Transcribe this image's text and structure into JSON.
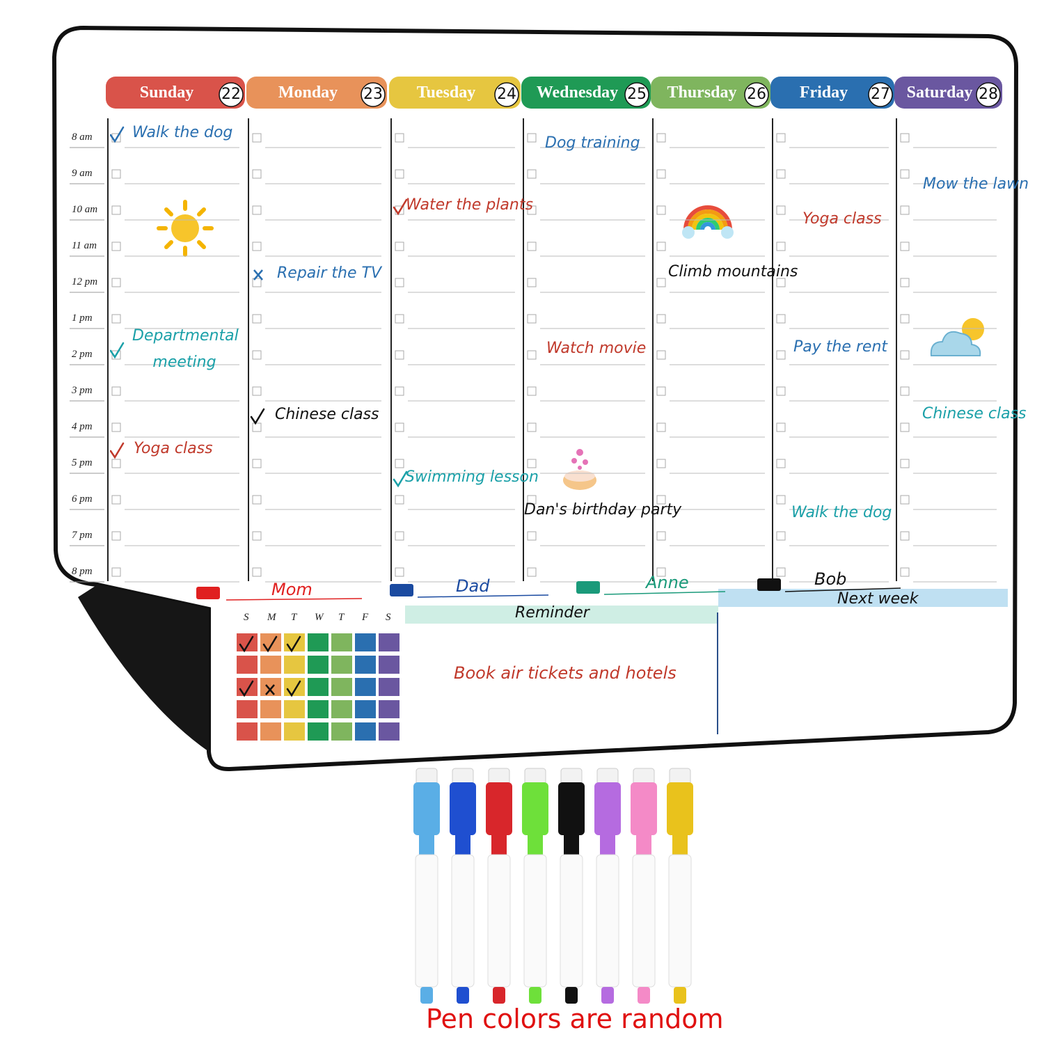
{
  "days": [
    {
      "name": "Sunday",
      "date": "22",
      "color": "#d9534a",
      "entries": [
        {
          "text": "Walk the dog",
          "color": "#2a6fb0"
        },
        {
          "text": "Departmental meeting",
          "color": "#1aa0a8"
        },
        {
          "text": "Yoga class",
          "color": "#c0392b"
        }
      ]
    },
    {
      "name": "Monday",
      "date": "23",
      "color": "#e8925a",
      "entries": [
        {
          "text": "Repair the TV",
          "color": "#2a6fb0"
        },
        {
          "text": "Chinese class",
          "color": "#111111"
        }
      ]
    },
    {
      "name": "Tuesday",
      "date": "24",
      "color": "#e6c640",
      "entries": [
        {
          "text": "Water the plants",
          "color": "#c0392b"
        },
        {
          "text": "Swimming lesson",
          "color": "#1aa0a8"
        }
      ]
    },
    {
      "name": "Wednesday",
      "date": "25",
      "color": "#1f9a55",
      "entries": [
        {
          "text": "Dog training",
          "color": "#2a6fb0"
        },
        {
          "text": "Watch movie",
          "color": "#c0392b"
        },
        {
          "text": "Dan's birthday party",
          "color": "#111111"
        }
      ]
    },
    {
      "name": "Thursday",
      "date": "26",
      "color": "#7fb55e",
      "entries": [
        {
          "text": "Climb mountains",
          "color": "#111111"
        }
      ]
    },
    {
      "name": "Friday",
      "date": "27",
      "color": "#2a6fb0",
      "entries": [
        {
          "text": "Yoga class",
          "color": "#c0392b"
        },
        {
          "text": "Pay the rent",
          "color": "#2a6fb0"
        },
        {
          "text": "Walk the dog",
          "color": "#1aa0a8"
        }
      ]
    },
    {
      "name": "Saturday",
      "date": "28",
      "color": "#6a57a0",
      "entries": [
        {
          "text": "Mow the lawn",
          "color": "#2a6fb0"
        },
        {
          "text": "Chinese class",
          "color": "#1aa0a8"
        }
      ]
    }
  ],
  "times": [
    "8 am",
    "9 am",
    "10 am",
    "11 am",
    "12 pm",
    "1 pm",
    "2 pm",
    "3 pm",
    "4 pm",
    "5 pm",
    "6 pm",
    "7 pm",
    "8 pm"
  ],
  "members": [
    {
      "name": "Mom",
      "color": "#e02020"
    },
    {
      "name": "Dad",
      "color": "#1a4aa0"
    },
    {
      "name": "Anne",
      "color": "#1a9a7a"
    },
    {
      "name": "Bob",
      "color": "#111111"
    }
  ],
  "tracker": {
    "weekdays": [
      "S",
      "M",
      "T",
      "W",
      "T",
      "F",
      "S"
    ]
  },
  "reminder": {
    "title": "Reminder",
    "note": "Book air tickets and hotels"
  },
  "next_week": {
    "title": "Next week"
  },
  "caption": "Pen colors are random"
}
